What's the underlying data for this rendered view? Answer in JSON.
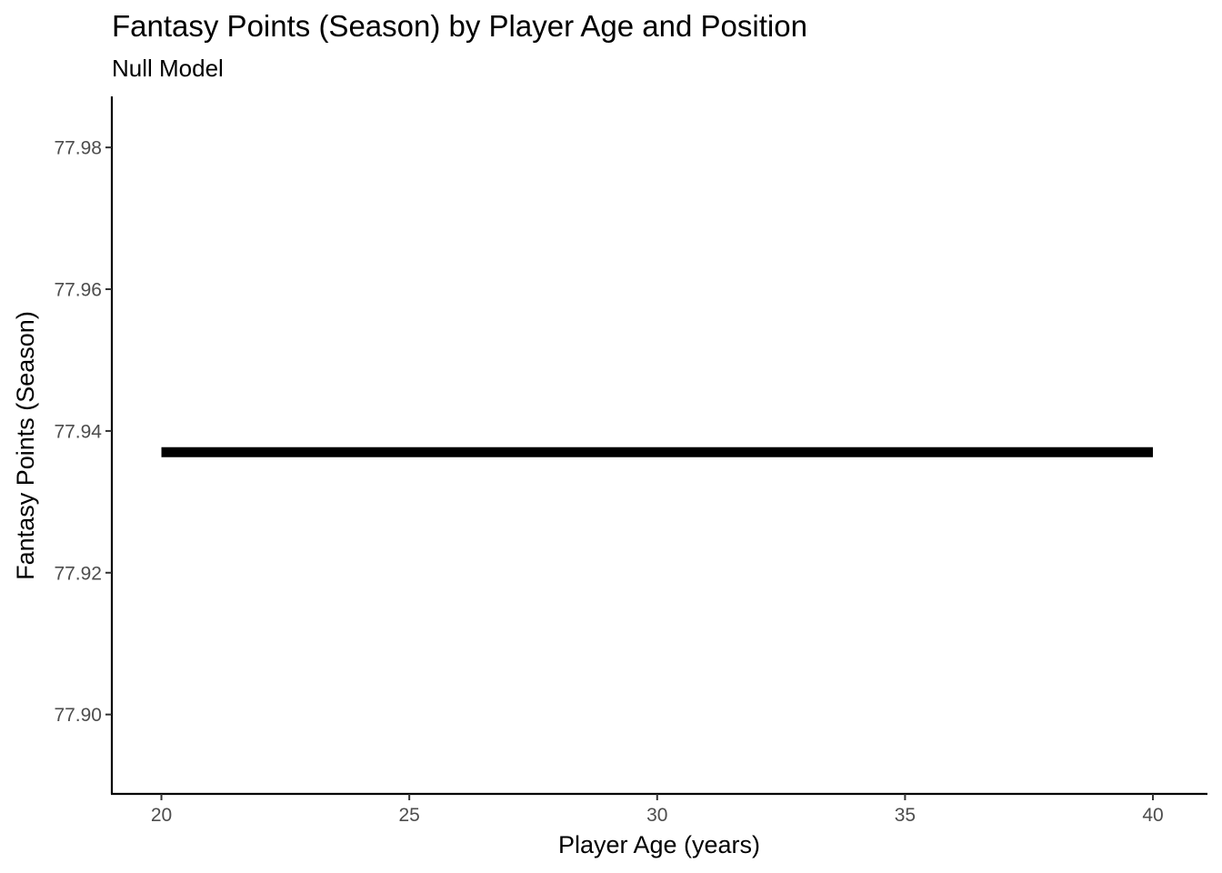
{
  "chart_data": {
    "type": "line",
    "title": "Fantasy Points (Season) by Player Age and Position",
    "subtitle": "Null Model",
    "xlabel": "Player Age (years)",
    "ylabel": "Fantasy Points (Season)",
    "xlim": [
      19,
      41.1
    ],
    "ylim": [
      77.8888,
      77.9872
    ],
    "x_ticks": [
      20,
      25,
      30,
      35,
      40
    ],
    "x_tick_labels": [
      "20",
      "25",
      "30",
      "35",
      "40"
    ],
    "y_ticks": [
      77.9,
      77.92,
      77.94,
      77.96,
      77.98
    ],
    "y_tick_labels": [
      "77.90",
      "77.92",
      "77.94",
      "77.96",
      "77.98"
    ],
    "grid": false,
    "legend": "none",
    "series": [
      {
        "color": "#000000",
        "x": [
          20,
          40
        ],
        "y": [
          77.937,
          77.937
        ]
      }
    ]
  }
}
